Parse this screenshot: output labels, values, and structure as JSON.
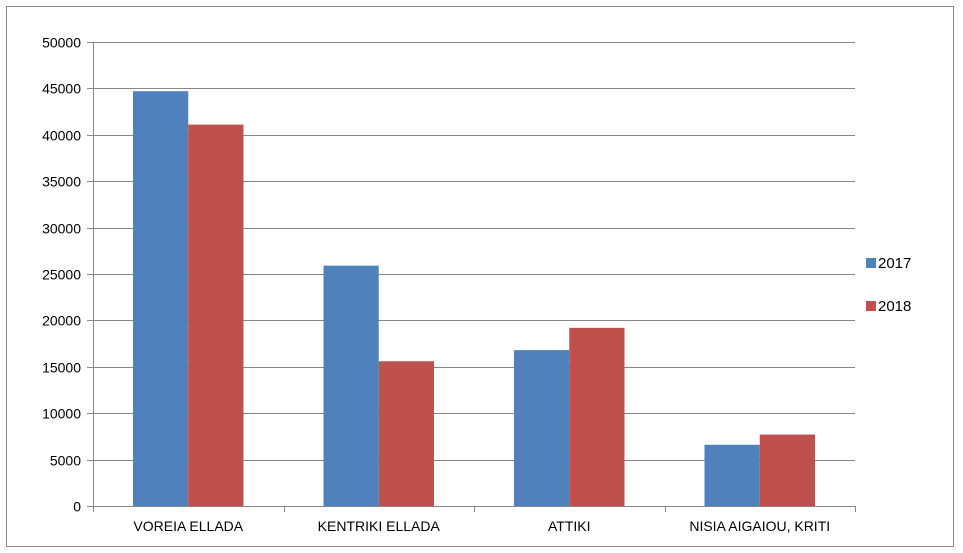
{
  "chart_data": {
    "type": "bar",
    "title": "",
    "xlabel": "",
    "ylabel": "",
    "categories": [
      "VOREIA ELLADA",
      "KENTRIKI ELLADA",
      "ATTIKI",
      "NISIA AIGAIOU, KRITI"
    ],
    "series": [
      {
        "name": "2017",
        "color": "#4f81bd",
        "values": [
          44700,
          25900,
          16800,
          6600
        ]
      },
      {
        "name": "2018",
        "color": "#c0504d",
        "values": [
          41100,
          15600,
          19200,
          7700
        ]
      }
    ],
    "ylim": [
      0,
      50000
    ],
    "yticks": [
      0,
      5000,
      10000,
      15000,
      20000,
      25000,
      30000,
      35000,
      40000,
      45000,
      50000
    ],
    "ytick_labels": [
      "0",
      "5000",
      "10000",
      "15000",
      "20000",
      "25000",
      "30000",
      "35000",
      "40000",
      "45000",
      "50000"
    ],
    "grid": true,
    "legend_position": "right"
  }
}
